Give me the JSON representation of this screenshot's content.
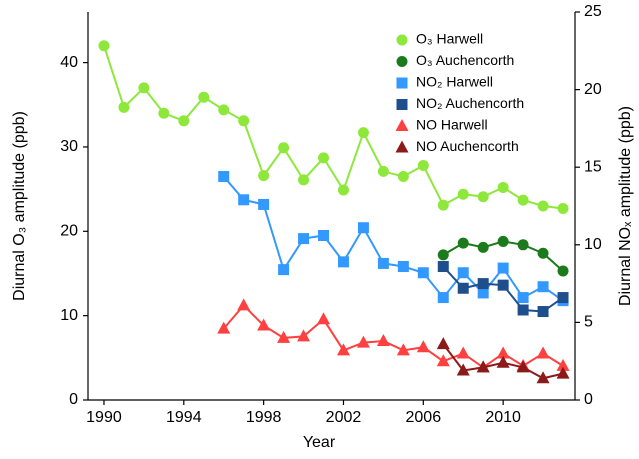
{
  "chart_data": {
    "type": "line",
    "x_label": "Year",
    "y_label": "Diurnal O₃ amplitude (ppb)",
    "y2_label": "Diurnal NOₓ amplitude (ppb)",
    "xlim": [
      1989.2,
      2013.6
    ],
    "xticks": [
      1990,
      1994,
      1998,
      2002,
      2006,
      2010
    ],
    "ylim": [
      0,
      46
    ],
    "yticks": [
      0,
      10,
      20,
      30,
      40
    ],
    "y2lim": [
      0,
      25
    ],
    "y2ticks": [
      0,
      5,
      10,
      15,
      20,
      25
    ],
    "legend": "upper right",
    "series": [
      {
        "name": "O₃ Harwell",
        "color": "#8ee83c",
        "marker": "circle",
        "x": [
          1990,
          1991,
          1992,
          1993,
          1994,
          1995,
          1996,
          1997,
          1998,
          1999,
          2000,
          2001,
          2002,
          2003,
          2004,
          2005,
          2006,
          2007,
          2008,
          2009,
          2010,
          2011,
          2012,
          2013
        ],
        "values": [
          42,
          34.7,
          37,
          34,
          33.1,
          35.9,
          34.4,
          33.1,
          26.6,
          29.9,
          26.1,
          28.7,
          24.9,
          31.7,
          27.1,
          26.5,
          27.8,
          23.1,
          24.4,
          24.1,
          25.2,
          23.7,
          23.0,
          22.7
        ]
      },
      {
        "name": "O₃ Auchencorth",
        "color": "#1b7a1b",
        "marker": "circle",
        "x": [
          2007,
          2008,
          2009,
          2010,
          2011,
          2012,
          2013
        ],
        "values": [
          17.2,
          18.6,
          18.1,
          18.8,
          18.4,
          17.4,
          15.3
        ]
      },
      {
        "name": "NO₂ Harwell",
        "color": "#3399ff",
        "marker": "square",
        "axis": "y2",
        "x": [
          1996,
          1997,
          1998,
          1999,
          2000,
          2001,
          2002,
          2003,
          2004,
          2005,
          2006,
          2007,
          2008,
          2009,
          2010,
          2011,
          2012,
          2013
        ],
        "values": [
          14.4,
          12.9,
          12.6,
          8.4,
          10.4,
          10.6,
          8.9,
          11.1,
          8.8,
          8.6,
          8.2,
          6.6,
          8.2,
          6.9,
          8.5,
          6.6,
          7.3,
          6.4
        ]
      },
      {
        "name": "NO₂ Auchencorth",
        "color": "#1f4e8c",
        "marker": "square",
        "axis": "y2",
        "x": [
          2007,
          2008,
          2009,
          2010,
          2011,
          2012,
          2013
        ],
        "values": [
          8.6,
          7.2,
          7.5,
          7.4,
          5.8,
          5.7,
          6.6
        ]
      },
      {
        "name": "NO Harwell",
        "color": "#ff4040",
        "marker": "triangle",
        "axis": "y2",
        "x": [
          1996,
          1997,
          1998,
          1999,
          2000,
          2001,
          2002,
          2003,
          2004,
          2005,
          2006,
          2007,
          2008,
          2009,
          2010,
          2011,
          2012,
          2013
        ],
        "values": [
          4.6,
          6.1,
          4.8,
          4.0,
          4.1,
          5.2,
          3.2,
          3.7,
          3.8,
          3.2,
          3.4,
          2.5,
          3.0,
          2.1,
          3.0,
          2.2,
          3.0,
          2.2
        ]
      },
      {
        "name": "NO Auchencorth",
        "color": "#8b1a1a",
        "marker": "triangle",
        "axis": "y2",
        "x": [
          2007,
          2008,
          2009,
          2010,
          2011,
          2012,
          2013
        ],
        "values": [
          3.6,
          1.9,
          2.1,
          2.4,
          2.1,
          1.4,
          1.7
        ]
      }
    ]
  }
}
